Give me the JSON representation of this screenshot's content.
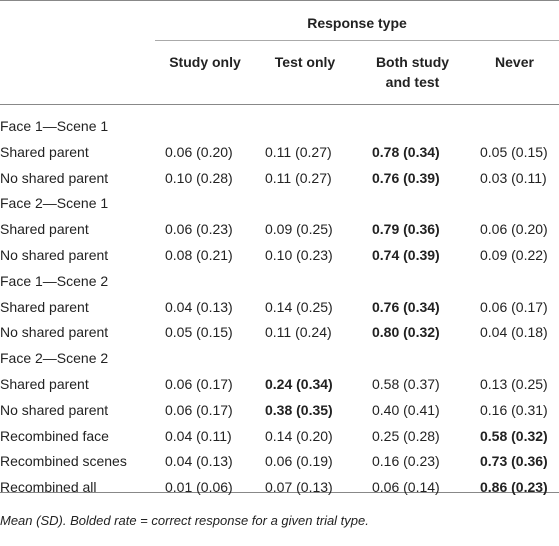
{
  "table": {
    "spanner": "Response type",
    "columns": [
      "Study only",
      "Test only",
      "Both study and test",
      "Never"
    ],
    "rows": [
      {
        "label": "Face 1—Scene 1"
      },
      {
        "label": "Shared parent",
        "cells": [
          "0.06 (0.20)",
          "0.11 (0.27)",
          "0.78 (0.34)",
          "0.05 (0.15)"
        ],
        "bold": 2
      },
      {
        "label": "No shared parent",
        "cells": [
          "0.10 (0.28)",
          "0.11 (0.27)",
          "0.76 (0.39)",
          "0.03 (0.11)"
        ],
        "bold": 2
      },
      {
        "label": "Face 2—Scene 1"
      },
      {
        "label": "Shared parent",
        "cells": [
          "0.06 (0.23)",
          "0.09 (0.25)",
          "0.79 (0.36)",
          "0.06 (0.20)"
        ],
        "bold": 2
      },
      {
        "label": "No shared parent",
        "cells": [
          "0.08 (0.21)",
          "0.10 (0.23)",
          "0.74 (0.39)",
          "0.09 (0.22)"
        ],
        "bold": 2
      },
      {
        "label": "Face 1—Scene 2"
      },
      {
        "label": "Shared parent",
        "cells": [
          "0.04 (0.13)",
          "0.14 (0.25)",
          "0.76 (0.34)",
          "0.06 (0.17)"
        ],
        "bold": 2
      },
      {
        "label": "No shared parent",
        "cells": [
          "0.05 (0.15)",
          "0.11 (0.24)",
          "0.80 (0.32)",
          "0.04 (0.18)"
        ],
        "bold": 2
      },
      {
        "label": "Face 2—Scene 2"
      },
      {
        "label": "Shared parent",
        "cells": [
          "0.06 (0.17)",
          "0.24 (0.34)",
          "0.58 (0.37)",
          "0.13 (0.25)"
        ],
        "bold": 1
      },
      {
        "label": "No shared parent",
        "cells": [
          "0.06 (0.17)",
          "0.38 (0.35)",
          "0.40 (0.41)",
          "0.16 (0.31)"
        ],
        "bold": 1
      },
      {
        "label": "Recombined face",
        "cells": [
          "0.04 (0.11)",
          "0.14 (0.20)",
          "0.25 (0.28)",
          "0.58 (0.32)"
        ],
        "bold": 3
      },
      {
        "label": "Recombined scenes",
        "cells": [
          "0.04 (0.13)",
          "0.06 (0.19)",
          "0.16 (0.23)",
          "0.73 (0.36)"
        ],
        "bold": 3
      },
      {
        "label": "Recombined all",
        "cells": [
          "0.01 (0.06)",
          "0.07 (0.13)",
          "0.06 (0.14)",
          "0.86 (0.23)"
        ],
        "bold": 3
      }
    ],
    "note": "Mean (SD). Bolded rate = correct response for a given trial type."
  }
}
